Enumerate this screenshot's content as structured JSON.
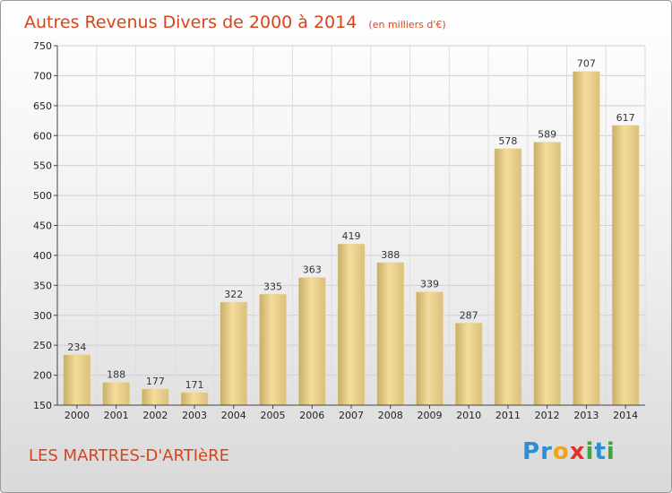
{
  "chart_data": {
    "type": "bar",
    "title": "Autres Revenus Divers de 2000 à 2014",
    "subtitle": "(en milliers d'€)",
    "categories": [
      "2000",
      "2001",
      "2002",
      "2003",
      "2004",
      "2005",
      "2006",
      "2007",
      "2008",
      "2009",
      "2010",
      "2011",
      "2012",
      "2013",
      "2014"
    ],
    "values": [
      234,
      188,
      177,
      171,
      322,
      335,
      363,
      419,
      388,
      339,
      287,
      578,
      589,
      707,
      617
    ],
    "ylim": [
      150,
      750
    ],
    "yticks": [
      150,
      200,
      250,
      300,
      350,
      400,
      450,
      500,
      550,
      600,
      650,
      700,
      750
    ],
    "grid": true,
    "data_labels": true,
    "colors": {
      "bar_light": "#f3dc9c",
      "bar_dark": "#c7ab63",
      "title": "#d9431a"
    }
  },
  "footer": {
    "place": "LES MARTRES-D'ARTIèRE",
    "logo_letters": [
      {
        "ch": "P",
        "color": "#2c8fd6"
      },
      {
        "ch": "r",
        "color": "#2c8fd6"
      },
      {
        "ch": "o",
        "color": "#f3a21c"
      },
      {
        "ch": "x",
        "color": "#e5312b"
      },
      {
        "ch": "i",
        "color": "#3aa63a"
      },
      {
        "ch": "t",
        "color": "#2c8fd6"
      },
      {
        "ch": "i",
        "color": "#3aa63a"
      }
    ]
  }
}
